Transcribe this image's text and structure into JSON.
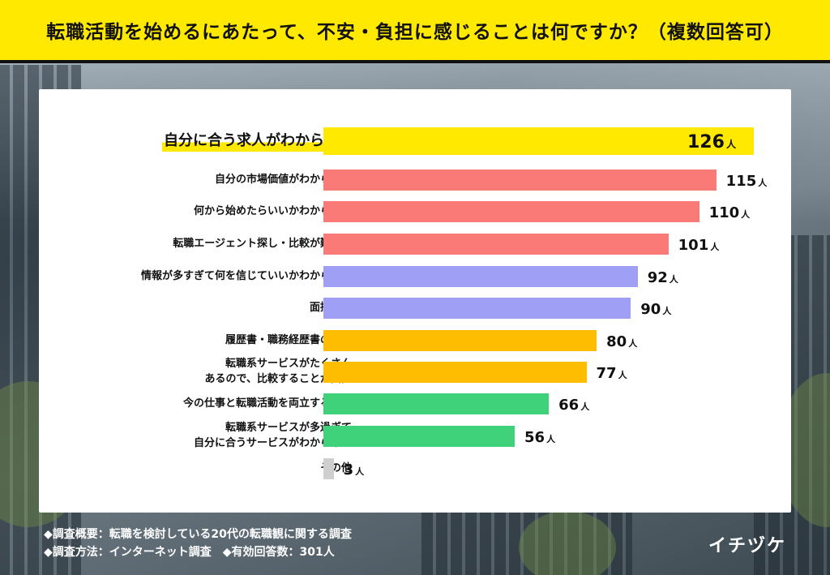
{
  "title": "転職活動を始めるにあたって、不安・負担に感じることは何ですか？（複数回答可）",
  "chart_data": {
    "type": "bar",
    "orientation": "horizontal",
    "unit": "人",
    "xlim": [
      0,
      126
    ],
    "grid": false,
    "categories": [
      "自分に合う求人がわからない",
      "自分の市場価値がわからない",
      "何から始めたらいいかわからない",
      "転職エージェント探し・比較が難しい",
      "情報が多すぎて何を信じていいかわからない",
      "面接対策",
      "履歴書・職務経歴書の準備",
      "転職系サービスがたくさん\nあるので、比較することが負担",
      "今の仕事と転職活動を両立すること",
      "転職系サービスが多過ぎて\n自分に合うサービスがわからない",
      "その他"
    ],
    "values": [
      126,
      115,
      110,
      101,
      92,
      90,
      80,
      77,
      66,
      56,
      3
    ],
    "colors": [
      "#ffe900",
      "#f97a77",
      "#f97a77",
      "#f97a77",
      "#9f9ff5",
      "#9f9ff5",
      "#ffbd00",
      "#ffbd00",
      "#3fd27a",
      "#3fd27a",
      "#cfcfcf"
    ],
    "highlight_index": 0
  },
  "footer": {
    "overview": "◆調査概要：転職を検討している20代の転職観に関する調査",
    "method": "◆調査方法：インターネット調査",
    "responses": "◆有効回答数：301人"
  },
  "logo": "イチヅケ"
}
